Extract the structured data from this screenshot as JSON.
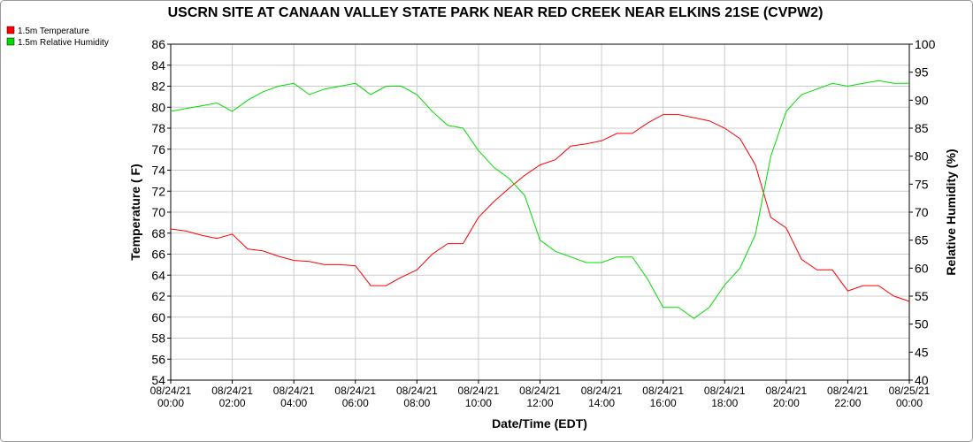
{
  "chart_data": {
    "type": "line",
    "title": "USCRN SITE AT CANAAN VALLEY STATE PARK NEAR RED CREEK NEAR ELKINS 21SE (CVPW2)",
    "x_label": "Date/Time (EDT)",
    "y_label": "Temperature ( F)",
    "y2_label": "Relative Humidity (%)",
    "x": [
      "08/24/21 00:00",
      "08/24/21 00:30",
      "08/24/21 01:00",
      "08/24/21 01:30",
      "08/24/21 02:00",
      "08/24/21 02:30",
      "08/24/21 03:00",
      "08/24/21 03:30",
      "08/24/21 04:00",
      "08/24/21 04:30",
      "08/24/21 05:00",
      "08/24/21 05:30",
      "08/24/21 06:00",
      "08/24/21 06:30",
      "08/24/21 07:00",
      "08/24/21 07:30",
      "08/24/21 08:00",
      "08/24/21 08:30",
      "08/24/21 09:00",
      "08/24/21 09:30",
      "08/24/21 10:00",
      "08/24/21 10:30",
      "08/24/21 11:00",
      "08/24/21 11:30",
      "08/24/21 12:00",
      "08/24/21 12:30",
      "08/24/21 13:00",
      "08/24/21 13:30",
      "08/24/21 14:00",
      "08/24/21 14:30",
      "08/24/21 15:00",
      "08/24/21 15:30",
      "08/24/21 16:00",
      "08/24/21 16:30",
      "08/24/21 17:00",
      "08/24/21 17:30",
      "08/24/21 18:00",
      "08/24/21 18:30",
      "08/24/21 19:00",
      "08/24/21 19:30",
      "08/24/21 20:00",
      "08/24/21 20:30",
      "08/24/21 21:00",
      "08/24/21 21:30",
      "08/24/21 22:00",
      "08/24/21 22:30",
      "08/24/21 23:00",
      "08/24/21 23:30",
      "08/25/21 00:00"
    ],
    "series": [
      {
        "name": "1.5m Temperature",
        "color": "#ff0000",
        "axis": "y",
        "values": [
          68.4,
          68.2,
          67.8,
          67.5,
          67.9,
          66.5,
          66.3,
          65.8,
          65.4,
          65.3,
          65.0,
          65.0,
          64.9,
          63.0,
          63.0,
          63.8,
          64.5,
          66.0,
          67.0,
          67.0,
          69.5,
          71.0,
          72.3,
          73.5,
          74.5,
          75.0,
          76.3,
          76.5,
          76.8,
          77.5,
          77.5,
          78.5,
          79.3,
          79.3,
          79.0,
          78.7,
          78.0,
          77.0,
          74.5,
          69.5,
          68.5,
          65.5,
          64.5,
          64.5,
          62.5,
          63.0,
          63.0,
          62.0,
          61.5
        ]
      },
      {
        "name": "1.5m Relative Humidity",
        "color": "#00dd00",
        "axis": "y2",
        "values": [
          88,
          88.5,
          89,
          89.5,
          88,
          90,
          91.5,
          92.5,
          93,
          91,
          92,
          92.5,
          93,
          91,
          92.5,
          92.5,
          91,
          88,
          85.5,
          85,
          81,
          78,
          76,
          73,
          65,
          63,
          62,
          61,
          61,
          62,
          62,
          58,
          53,
          53,
          51,
          53,
          57,
          60,
          66,
          80,
          88,
          91,
          92,
          93,
          92.5,
          93,
          93.5,
          93,
          93
        ]
      }
    ],
    "xlim": [
      "08/24/21 00:00",
      "08/25/21 00:00"
    ],
    "xticks": [
      "08/24/21 00:00",
      "08/24/21 02:00",
      "08/24/21 04:00",
      "08/24/21 06:00",
      "08/24/21 08:00",
      "08/24/21 10:00",
      "08/24/21 12:00",
      "08/24/21 14:00",
      "08/24/21 16:00",
      "08/24/21 18:00",
      "08/24/21 20:00",
      "08/24/21 22:00",
      "08/25/21 00:00"
    ],
    "ylim": [
      54,
      86
    ],
    "yticks": [
      54,
      56,
      58,
      60,
      62,
      64,
      66,
      68,
      70,
      72,
      74,
      76,
      78,
      80,
      82,
      84,
      86
    ],
    "y2lim": [
      40,
      100
    ],
    "y2ticks": [
      40,
      45,
      50,
      55,
      60,
      65,
      70,
      75,
      80,
      85,
      90,
      95,
      100
    ],
    "grid": true,
    "legend": "top-left"
  }
}
